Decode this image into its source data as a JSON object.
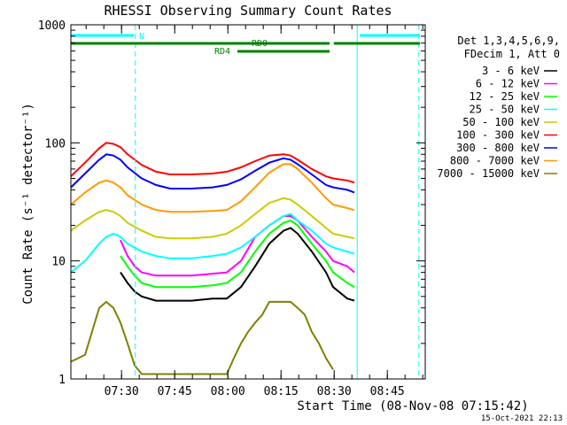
{
  "chart_data": {
    "type": "line",
    "title": "RHESSI Observing Summary Count Rates",
    "xlabel": "Start Time (08-Nov-08 07:15:42)",
    "ylabel": "Count Rate (s⁻¹ detector⁻¹)",
    "y_scale": "log",
    "ylim": [
      1,
      1000
    ],
    "xlim_minutes": [
      0,
      100
    ],
    "x_ticks": [
      {
        "label": "07:30",
        "m": 14.3
      },
      {
        "label": "07:45",
        "m": 29.3
      },
      {
        "label": "08:00",
        "m": 44.3
      },
      {
        "label": "08:15",
        "m": 59.3
      },
      {
        "label": "08:30",
        "m": 74.3
      },
      {
        "label": "08:45",
        "m": 89.3
      }
    ],
    "y_tick_labels": [
      "1",
      "10",
      "100",
      "1000"
    ],
    "legend_header": [
      "Det 1,3,4,5,6,9,",
      "FDecim 1, Att 0"
    ],
    "footer_timestamp": "15-Oct-2021 22:13",
    "flags": [
      {
        "label": "N",
        "color": "#00ffff",
        "segments": [
          [
            0,
            17.8
          ],
          [
            81.5,
            98.5
          ]
        ]
      },
      {
        "label": "RD0",
        "color": "#008000",
        "segments": [
          [
            0,
            41
          ],
          [
            41,
            73
          ],
          [
            74.2,
            98.5
          ]
        ]
      },
      {
        "label": "RD4",
        "color": "#008000",
        "segments": [
          [
            47,
            73
          ]
        ]
      }
    ],
    "cyan_dashed_lines_minutes": [
      18.2,
      98.2
    ],
    "cyan_solid_lines_minutes": [
      0,
      80.8
    ],
    "series": [
      {
        "name": "3 - 6 keV",
        "color": "#000000",
        "x": [
          14,
          16,
          18,
          20,
          24,
          28,
          34,
          40,
          44,
          48,
          52,
          56,
          60,
          62,
          64,
          68,
          72,
          74,
          78,
          80
        ],
        "y": [
          8,
          6.5,
          5.5,
          5,
          4.6,
          4.6,
          4.6,
          4.8,
          4.8,
          6,
          9,
          14,
          18,
          19,
          17,
          12,
          8,
          6,
          4.8,
          4.6
        ]
      },
      {
        "name": "6 - 12 keV",
        "color": "#ff00ff",
        "x": [
          14,
          16,
          18,
          20,
          24,
          28,
          34,
          40,
          44,
          48,
          52,
          56,
          60,
          62,
          64,
          68,
          72,
          74,
          78,
          80
        ],
        "y": [
          15,
          11,
          9,
          8,
          7.5,
          7.5,
          7.5,
          7.8,
          8,
          10,
          16,
          20,
          24,
          24,
          22,
          16,
          12,
          10,
          9,
          8
        ]
      },
      {
        "name": "12 - 25 keV",
        "color": "#00ff00",
        "x": [
          14,
          16,
          18,
          20,
          24,
          28,
          34,
          40,
          44,
          48,
          52,
          56,
          60,
          62,
          64,
          68,
          72,
          74,
          78,
          80
        ],
        "y": [
          11,
          9,
          7.5,
          6.5,
          6,
          6,
          6,
          6.2,
          6.5,
          8,
          12,
          17,
          21,
          22,
          20,
          14,
          10,
          8,
          6.5,
          6
        ]
      },
      {
        "name": "25 - 50 keV",
        "color": "#00ffff",
        "x": [
          0,
          4,
          8,
          10,
          12,
          14,
          16,
          20,
          24,
          28,
          34,
          40,
          44,
          48,
          52,
          56,
          60,
          62,
          64,
          68,
          72,
          74,
          78,
          80
        ],
        "y": [
          8,
          10,
          14,
          16,
          17,
          16,
          14,
          12,
          11,
          10.5,
          10.5,
          11,
          11.5,
          13,
          16,
          20,
          24,
          25,
          22,
          18,
          14,
          13,
          12,
          11.5
        ]
      },
      {
        "name": "50 - 100 keV",
        "color": "#cccc00",
        "x": [
          0,
          4,
          8,
          10,
          12,
          14,
          16,
          20,
          24,
          28,
          34,
          40,
          44,
          48,
          52,
          56,
          60,
          62,
          64,
          68,
          72,
          74,
          78,
          80
        ],
        "y": [
          18,
          22,
          26,
          27,
          26,
          24,
          21,
          18,
          16,
          15.5,
          15.5,
          16,
          17,
          20,
          25,
          31,
          34,
          33,
          30,
          24,
          19,
          17,
          16,
          15.5
        ]
      },
      {
        "name": "100 - 300 keV",
        "color": "#ff0000",
        "x": [
          0,
          4,
          8,
          10,
          12,
          14,
          16,
          20,
          24,
          28,
          34,
          40,
          44,
          48,
          52,
          56,
          60,
          62,
          64,
          68,
          72,
          74,
          78,
          80
        ],
        "y": [
          52,
          68,
          90,
          100,
          98,
          92,
          80,
          65,
          57,
          54,
          54,
          55,
          57,
          62,
          70,
          78,
          80,
          78,
          72,
          60,
          52,
          50,
          48,
          46
        ]
      },
      {
        "name": "300 - 800 keV",
        "color": "#0000ff",
        "x": [
          0,
          4,
          8,
          10,
          12,
          14,
          16,
          20,
          24,
          28,
          34,
          40,
          44,
          48,
          52,
          56,
          60,
          62,
          64,
          68,
          72,
          74,
          78,
          80
        ],
        "y": [
          42,
          55,
          72,
          80,
          78,
          72,
          62,
          50,
          44,
          41,
          41,
          42,
          44,
          49,
          58,
          68,
          74,
          72,
          66,
          54,
          44,
          42,
          40,
          38
        ]
      },
      {
        "name": "800 - 7000 keV",
        "color": "#ff9900",
        "x": [
          0,
          4,
          8,
          10,
          12,
          14,
          16,
          20,
          24,
          28,
          34,
          40,
          44,
          48,
          52,
          56,
          60,
          62,
          64,
          68,
          72,
          74,
          78,
          80
        ],
        "y": [
          30,
          38,
          46,
          48,
          46,
          42,
          36,
          30,
          27,
          26,
          26,
          26.5,
          27,
          32,
          42,
          56,
          66,
          66,
          60,
          46,
          34,
          30,
          28,
          27
        ]
      },
      {
        "name": "7000 - 15000 keV",
        "color": "#808000",
        "x": [
          0,
          4,
          8,
          10,
          12,
          14,
          16,
          18,
          20,
          44,
          46,
          48,
          50,
          52,
          54,
          56,
          58,
          60,
          62,
          64,
          66,
          68,
          70,
          72,
          74
        ],
        "y": [
          1.4,
          1.6,
          4,
          4.5,
          4,
          3,
          2,
          1.3,
          1.1,
          1.1,
          1.5,
          2,
          2.5,
          3,
          3.5,
          4.5,
          4.5,
          4.5,
          4.5,
          4,
          3.5,
          2.5,
          2,
          1.5,
          1.2
        ]
      }
    ]
  }
}
